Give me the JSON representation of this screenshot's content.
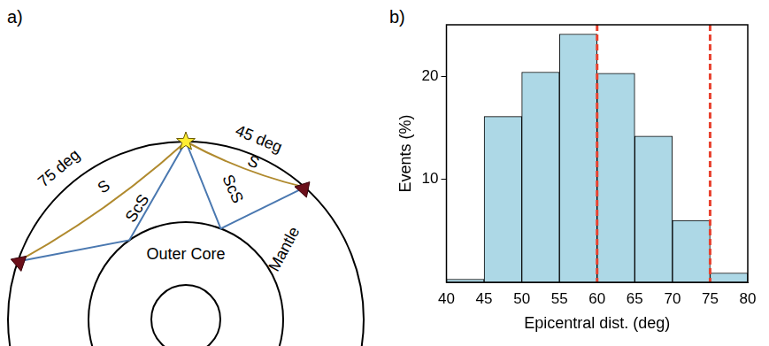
{
  "diagram": {
    "panel": "a)",
    "distance_labels": [
      "75 deg",
      "45 deg"
    ],
    "rays": [
      "S",
      "ScS"
    ],
    "regions": [
      "Outer Core",
      "Mantle"
    ]
  },
  "chart_data": {
    "panel": "b)",
    "type": "histogram",
    "bins": [
      40,
      45,
      50,
      55,
      60,
      65,
      70,
      75,
      80
    ],
    "values": [
      0.3,
      16.1,
      20.4,
      24.1,
      20.3,
      14.2,
      6.0,
      0.9
    ],
    "color": "#add8e6",
    "x_label": "Epicentral dist. (deg)",
    "y_label": "Events (%)",
    "xlim": [
      40,
      80
    ],
    "xticks": [
      40,
      45,
      50,
      55,
      60,
      65,
      70,
      75,
      80
    ],
    "ylim": [
      0,
      25
    ],
    "yticks": [
      10,
      20
    ],
    "grid": false,
    "reference_lines": {
      "values": [
        60,
        75
      ],
      "color": "#e8412e",
      "line_style": "dashed"
    }
  }
}
